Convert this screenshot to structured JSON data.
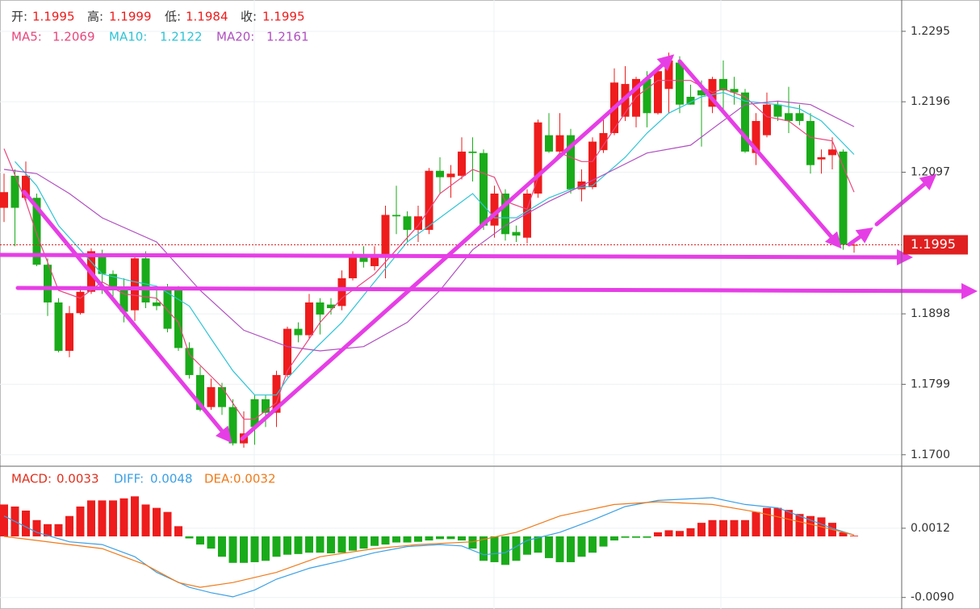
{
  "chart_data": [
    {
      "type": "candlestick",
      "ohlc_labels": [
        "开:",
        "高:",
        "低:",
        "收:"
      ],
      "up_color": "#ee1c1c",
      "down_color": "#1aab1a",
      "price_line_color": "#e02020",
      "grid": true,
      "ylim": [
        1.1685,
        1.2339
      ],
      "yticks": [
        1.2295,
        1.2196,
        1.2097,
        1.1898,
        1.1799,
        {
          "value": 1.17,
          "label": "1.1700"
        }
      ],
      "candles": [
        [
          1.2047,
          1.2095,
          1.2027,
          1.2069
        ],
        [
          1.2092,
          1.2101,
          1.1993,
          1.2047
        ],
        [
          1.2061,
          1.2112,
          1.2056,
          1.2092
        ],
        [
          1.2061,
          1.2067,
          1.1965,
          1.1967
        ],
        [
          1.1967,
          1.1976,
          1.1895,
          1.1914
        ],
        [
          1.1914,
          1.192,
          1.1844,
          1.1846
        ],
        [
          1.1846,
          1.1909,
          1.1837,
          1.1899
        ],
        [
          1.1899,
          1.1937,
          1.1897,
          1.1929
        ],
        [
          1.1929,
          1.199,
          1.1926,
          1.1986
        ],
        [
          1.1982,
          1.1988,
          1.1926,
          1.1954
        ],
        [
          1.1954,
          1.1959,
          1.192,
          1.1931
        ],
        [
          1.1931,
          1.1948,
          1.1886,
          1.1901
        ],
        [
          1.1903,
          1.1982,
          1.1888,
          1.1976
        ],
        [
          1.1976,
          1.1986,
          1.1906,
          1.1914
        ],
        [
          1.1914,
          1.1931,
          1.1903,
          1.1909
        ],
        [
          1.1931,
          1.194,
          1.1872,
          1.1877
        ],
        [
          1.1931,
          1.1937,
          1.1846,
          1.185
        ],
        [
          1.185,
          1.1858,
          1.1807,
          1.1812
        ],
        [
          1.1812,
          1.1824,
          1.1761,
          1.1763
        ],
        [
          1.1767,
          1.1807,
          1.1763,
          1.1795
        ],
        [
          1.1795,
          1.1801,
          1.1756,
          1.1767
        ],
        [
          1.1767,
          1.1778,
          1.1713,
          1.1716
        ],
        [
          1.1716,
          1.1761,
          1.171,
          1.173
        ],
        [
          1.1778,
          1.1784,
          1.1714,
          1.1739
        ],
        [
          1.1778,
          1.1784,
          1.1739,
          1.1759
        ],
        [
          1.1759,
          1.1818,
          1.1739,
          1.1812
        ],
        [
          1.1812,
          1.188,
          1.1809,
          1.1877
        ],
        [
          1.1877,
          1.1886,
          1.1858,
          1.1868
        ],
        [
          1.1868,
          1.1926,
          1.1863,
          1.1914
        ],
        [
          1.1914,
          1.192,
          1.1869,
          1.1897
        ],
        [
          1.1911,
          1.192,
          1.1897,
          1.1906
        ],
        [
          1.1909,
          1.1959,
          1.1903,
          1.1948
        ],
        [
          1.1948,
          1.1986,
          1.1945,
          1.1982
        ],
        [
          1.1982,
          1.1993,
          1.1963,
          1.1971
        ],
        [
          1.1965,
          1.1993,
          1.1959,
          1.1982
        ],
        [
          1.1982,
          1.205,
          1.1948,
          1.2037
        ],
        [
          1.2037,
          1.2078,
          1.201,
          1.2035
        ],
        [
          1.2035,
          1.2042,
          1.1999,
          1.2016
        ],
        [
          1.2016,
          1.205,
          1.1999,
          1.2035
        ],
        [
          1.2016,
          1.2103,
          1.201,
          1.2099
        ],
        [
          1.2099,
          1.2118,
          1.2067,
          1.209
        ],
        [
          1.209,
          1.2107,
          1.2061,
          1.2095
        ],
        [
          1.2092,
          1.2146,
          1.2087,
          1.2126
        ],
        [
          1.2126,
          1.2146,
          1.2084,
          1.2124
        ],
        [
          1.2124,
          1.2129,
          1.2016,
          1.2022
        ],
        [
          1.2022,
          1.2078,
          1.2005,
          1.2067
        ],
        [
          1.2067,
          1.2073,
          1.2001,
          1.201
        ],
        [
          1.2013,
          1.2022,
          1.1999,
          1.2008
        ],
        [
          1.2005,
          1.2073,
          1.1997,
          1.2067
        ],
        [
          1.2067,
          1.2171,
          1.2061,
          1.2167
        ],
        [
          1.2149,
          1.218,
          1.2124,
          1.2126
        ],
        [
          1.2126,
          1.218,
          1.2124,
          1.2149
        ],
        [
          1.2149,
          1.2158,
          1.2067,
          1.2073
        ],
        [
          1.2073,
          1.2101,
          1.2056,
          1.2084
        ],
        [
          1.2076,
          1.2146,
          1.2073,
          1.214
        ],
        [
          1.2128,
          1.2175,
          1.2124,
          1.2152
        ],
        [
          1.2152,
          1.2243,
          1.2149,
          1.2223
        ],
        [
          1.2175,
          1.2246,
          1.2169,
          1.2221
        ],
        [
          1.2175,
          1.2231,
          1.216,
          1.2228
        ],
        [
          1.2228,
          1.2239,
          1.216,
          1.218
        ],
        [
          1.218,
          1.2243,
          1.2178,
          1.2239
        ],
        [
          1.2214,
          1.2265,
          1.218,
          1.2254
        ],
        [
          1.2251,
          1.226,
          1.218,
          1.2192
        ],
        [
          1.2203,
          1.222,
          1.2192,
          1.2192
        ],
        [
          1.2212,
          1.2226,
          1.2133,
          1.2205
        ],
        [
          1.2189,
          1.2231,
          1.218,
          1.2228
        ],
        [
          1.2228,
          1.2254,
          1.2183,
          1.2212
        ],
        [
          1.2214,
          1.2231,
          1.2192,
          1.2209
        ],
        [
          1.2209,
          1.2214,
          1.2124,
          1.2126
        ],
        [
          1.2124,
          1.218,
          1.2107,
          1.2169
        ],
        [
          1.2149,
          1.2209,
          1.2146,
          1.2192
        ],
        [
          1.2192,
          1.2197,
          1.2169,
          1.2175
        ],
        [
          1.218,
          1.2217,
          1.2152,
          1.2169
        ],
        [
          1.218,
          1.2192,
          1.2163,
          1.2169
        ],
        [
          1.2169,
          1.218,
          1.2095,
          1.2107
        ],
        [
          1.2115,
          1.2129,
          1.2095,
          1.2118
        ],
        [
          1.2121,
          1.2146,
          1.2101,
          1.2129
        ],
        [
          1.2126,
          1.2129,
          1.1988,
          1.1995
        ],
        [
          1.1995,
          1.1999,
          1.1984,
          1.1995
        ]
      ],
      "series": [
        {
          "name": "MA5:",
          "color": "#e8467c",
          "x": [
            0,
            2,
            3,
            5,
            7,
            9,
            11,
            14,
            16,
            17,
            20,
            22,
            23,
            25,
            26,
            28,
            29,
            31,
            34,
            36,
            38,
            40,
            43,
            45,
            46,
            48,
            49,
            51,
            53,
            54,
            56,
            58,
            60,
            63,
            65,
            66,
            68,
            70,
            72,
            74,
            76,
            78
          ],
          "values": [
            1.213,
            1.2056,
            1.201,
            1.1931,
            1.192,
            1.1943,
            1.1926,
            1.192,
            1.1886,
            1.1841,
            1.1795,
            1.175,
            1.175,
            1.1773,
            1.1818,
            1.1863,
            1.1886,
            1.192,
            1.1954,
            1.1988,
            1.2022,
            1.2067,
            1.2101,
            1.209,
            1.2056,
            1.2045,
            1.209,
            1.2124,
            1.2112,
            1.2112,
            1.2158,
            1.2203,
            1.2226,
            1.2226,
            1.2209,
            1.2214,
            1.2203,
            1.2175,
            1.2169,
            1.2146,
            1.2141,
            1.2069
          ]
        },
        {
          "name": "MA10:",
          "color": "#2ec4d6",
          "x": [
            1,
            3,
            5,
            7,
            9,
            12,
            14,
            17,
            19,
            21,
            23,
            25,
            26,
            28,
            31,
            34,
            37,
            40,
            43,
            45,
            47,
            50,
            52,
            54,
            57,
            59,
            61,
            64,
            66,
            68,
            71,
            73,
            75,
            78
          ],
          "values": [
            1.2112,
            1.2078,
            1.2022,
            1.1988,
            1.1954,
            1.1943,
            1.1937,
            1.1909,
            1.1863,
            1.1818,
            1.1784,
            1.1784,
            1.1807,
            1.1841,
            1.1886,
            1.1943,
            1.1999,
            1.2033,
            1.2067,
            1.2033,
            1.2033,
            1.2061,
            1.2073,
            1.2078,
            1.2118,
            1.2152,
            1.218,
            1.2203,
            1.2209,
            1.2197,
            1.2192,
            1.2186,
            1.2169,
            1.2122
          ]
        },
        {
          "name": "MA20:",
          "color": "#b04fc0",
          "x": [
            0,
            3,
            6,
            9,
            14,
            18,
            22,
            26,
            29,
            33,
            37,
            40,
            43,
            46,
            50,
            53,
            56,
            59,
            63,
            65,
            68,
            71,
            74,
            78
          ],
          "values": [
            1.2101,
            1.2095,
            1.2067,
            1.2033,
            1.1999,
            1.1931,
            1.1875,
            1.1852,
            1.1846,
            1.1852,
            1.1886,
            1.1931,
            1.1988,
            1.2022,
            1.2056,
            1.2078,
            1.2101,
            1.2124,
            1.2135,
            1.2158,
            1.2192,
            1.2197,
            1.2192,
            1.2161
          ]
        }
      ]
    },
    {
      "type": "macd",
      "title": "MACD:",
      "title_color": "#e0301e",
      "current": 0.0033,
      "up_color": "#ee1c1c",
      "down_color": "#1aab1a",
      "ylim": [
        -0.0107,
        0.0101
      ],
      "yticks": [
        0.0012,
        {
          "value": -0.009,
          "label": "-0.0090"
        }
      ],
      "histogram": [
        0.0047,
        0.0044,
        0.0038,
        0.0024,
        0.0018,
        0.0018,
        0.003,
        0.0044,
        0.0053,
        0.0053,
        0.0053,
        0.0056,
        0.0059,
        0.0047,
        0.0042,
        0.0036,
        0.0015,
        -0.0003,
        -0.0012,
        -0.0018,
        -0.003,
        -0.0039,
        -0.0039,
        -0.0038,
        -0.0036,
        -0.003,
        -0.0027,
        -0.0026,
        -0.0024,
        -0.0024,
        -0.0025,
        -0.0024,
        -0.0021,
        -0.0018,
        -0.0014,
        -0.0012,
        -0.0009,
        -0.0009,
        -0.0008,
        -0.0006,
        -0.0004,
        -0.0004,
        -0.0006,
        -0.0018,
        -0.0036,
        -0.0038,
        -0.0042,
        -0.0036,
        -0.0027,
        -0.0024,
        -0.0032,
        -0.0038,
        -0.0038,
        -0.003,
        -0.0024,
        -0.0015,
        -0.0006,
        -0.0002,
        -0.0002,
        -0.0002,
        0.0006,
        0.0009,
        0.0008,
        0.0012,
        0.002,
        0.0024,
        0.0024,
        0.0024,
        0.0024,
        0.0036,
        0.0042,
        0.0042,
        0.0039,
        0.0033,
        0.003,
        0.0028,
        0.002,
        0.0006,
        0.0001
      ],
      "series": [
        {
          "name": "DIFF:",
          "current": 0.0048,
          "color": "#3ba0e6",
          "x": [
            0,
            3,
            6,
            9,
            12,
            14,
            17,
            19,
            21,
            23,
            25,
            28,
            31,
            34,
            37,
            40,
            42,
            44,
            46,
            48,
            51,
            54,
            57,
            60,
            65,
            68,
            71,
            74,
            76,
            78
          ],
          "values": [
            0.003,
            0.0006,
            -0.0008,
            -0.0012,
            -0.003,
            -0.0053,
            -0.0075,
            -0.0083,
            -0.0089,
            -0.0079,
            -0.0063,
            -0.0047,
            -0.0036,
            -0.0024,
            -0.0015,
            -0.0012,
            -0.0014,
            -0.0027,
            -0.0024,
            -0.0006,
            0.0006,
            0.0024,
            0.0044,
            0.0053,
            0.0057,
            0.0047,
            0.0042,
            0.0024,
            0.0012,
            0.0002
          ]
        },
        {
          "name": "DEA:",
          "current": 0.0032,
          "color": "#f07a1a",
          "x": [
            0,
            3,
            6,
            9,
            13,
            16,
            18,
            21,
            25,
            29,
            34,
            38,
            43,
            47,
            51,
            56,
            60,
            65,
            69,
            74,
            78
          ],
          "values": [
            0,
            -0.0006,
            -0.0012,
            -0.0018,
            -0.0042,
            -0.0068,
            -0.0075,
            -0.0068,
            -0.0053,
            -0.003,
            -0.0018,
            -0.0012,
            -0.0008,
            0.0006,
            0.003,
            0.0047,
            0.0051,
            0.0047,
            0.0036,
            0.0018,
            0.0002
          ]
        }
      ]
    }
  ]
}
